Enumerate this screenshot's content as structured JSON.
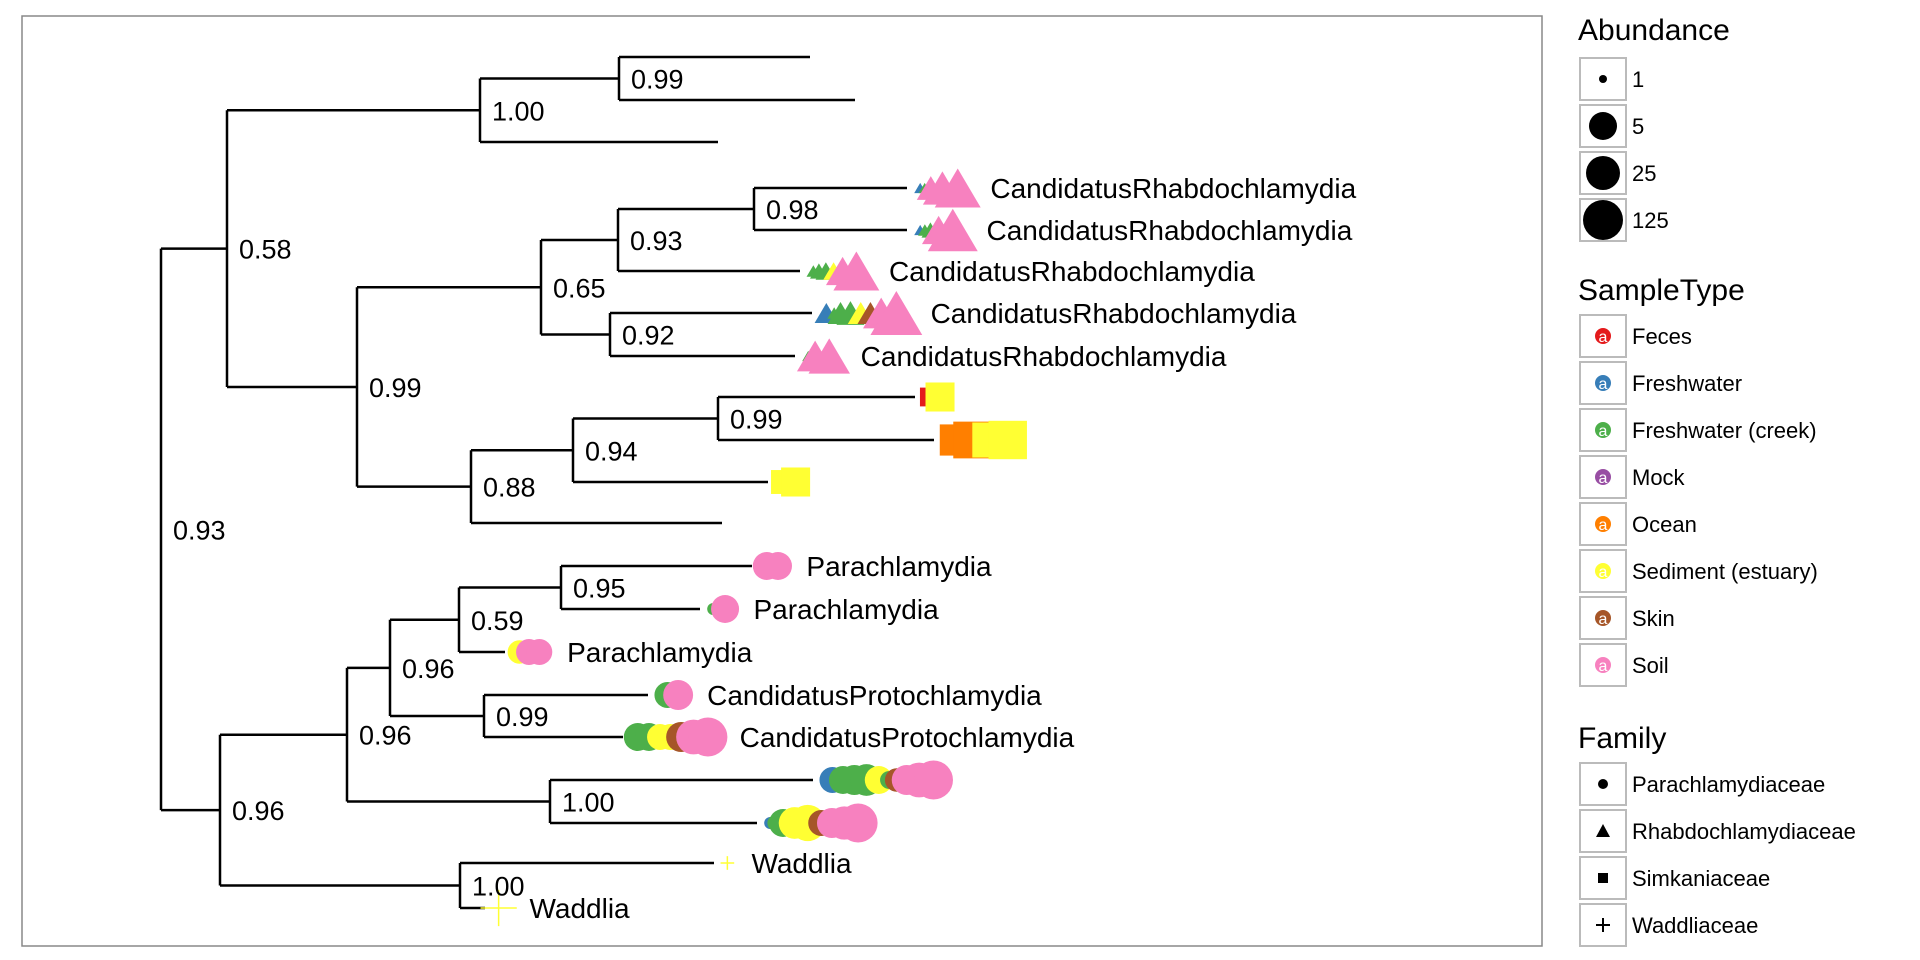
{
  "chart_data": {
    "type": "phylogenetic-tree",
    "colors": {
      "Feces": "#e41a1c",
      "Freshwater": "#377eb8",
      "Freshwater (creek)": "#4daf4a",
      "Mock": "#984ea3",
      "Ocean": "#ff7f00",
      "Sediment (estuary)": "#ffff33",
      "Skin": "#a65628",
      "Soil": "#f781bf"
    },
    "tips": [
      {
        "label": "",
        "family": "",
        "points": []
      },
      {
        "label": "",
        "family": "",
        "points": []
      },
      {
        "label": "",
        "family": "",
        "points": []
      },
      {
        "label": "CandidatusRhabdochlamydia",
        "family": "Rhabdochlamydiaceae",
        "points": [
          [
            "Freshwater",
            1
          ],
          [
            "Freshwater (creek)",
            1
          ],
          [
            "Soil",
            25
          ],
          [
            "Soil",
            60
          ],
          [
            "Soil",
            90
          ]
        ]
      },
      {
        "label": "CandidatusRhabdochlamydia",
        "family": "Rhabdochlamydiaceae",
        "points": [
          [
            "Freshwater",
            1
          ],
          [
            "Freshwater (creek)",
            2
          ],
          [
            "Freshwater (creek)",
            6
          ],
          [
            "Soil",
            40
          ],
          [
            "Soil",
            110
          ]
        ]
      },
      {
        "label": "CandidatusRhabdochlamydia",
        "family": "Rhabdochlamydiaceae",
        "points": [
          [
            "Freshwater (creek)",
            2
          ],
          [
            "Freshwater (creek)",
            6
          ],
          [
            "Freshwater (creek)",
            10
          ],
          [
            "Sediment (estuary)",
            10
          ],
          [
            "Soil",
            40
          ],
          [
            "Soil",
            90
          ]
        ]
      },
      {
        "label": "CandidatusRhabdochlamydia",
        "family": "Rhabdochlamydiaceae",
        "points": [
          [
            "Freshwater",
            15
          ],
          [
            "Freshwater (creek)",
            2
          ],
          [
            "Freshwater (creek)",
            20
          ],
          [
            "Freshwater (creek)",
            25
          ],
          [
            "Sediment (estuary)",
            20
          ],
          [
            "Skin",
            20
          ],
          [
            "Soil",
            50
          ],
          [
            "Soil",
            120
          ]
        ]
      },
      {
        "label": "CandidatusRhabdochlamydia",
        "family": "Rhabdochlamydiaceae",
        "points": [
          [
            "Freshwater (creek)",
            1
          ],
          [
            "Soil",
            50
          ],
          [
            "Soil",
            70
          ]
        ]
      },
      {
        "label": "",
        "family": "Simkaniaceae",
        "points": [
          [
            "Feces",
            15
          ],
          [
            "Sediment (estuary)",
            50
          ]
        ]
      },
      {
        "label": "",
        "family": "Simkaniaceae",
        "points": [
          [
            "Feces",
            2
          ],
          [
            "Ocean",
            60
          ],
          [
            "Ocean",
            90
          ],
          [
            "Sediment (estuary)",
            80
          ],
          [
            "Sediment (estuary)",
            100
          ]
        ]
      },
      {
        "label": "",
        "family": "Simkaniaceae",
        "points": [
          [
            "Sediment (estuary)",
            30
          ],
          [
            "Sediment (estuary)",
            50
          ]
        ]
      },
      {
        "label": "",
        "family": "",
        "points": []
      },
      {
        "label": "Parachlamydia",
        "family": "Parachlamydiaceae",
        "points": [
          [
            "Soil",
            25
          ],
          [
            "Soil",
            25
          ]
        ]
      },
      {
        "label": "Parachlamydia",
        "family": "Parachlamydiaceae",
        "points": [
          [
            "Freshwater (creek)",
            1
          ],
          [
            "Soil",
            2
          ],
          [
            "Soil",
            25
          ]
        ]
      },
      {
        "label": "Parachlamydia",
        "family": "Parachlamydiaceae",
        "points": [
          [
            "Sediment (estuary)",
            15
          ],
          [
            "Soil",
            20
          ],
          [
            "Soil",
            20
          ]
        ]
      },
      {
        "label": "CandidatusProtochlamydia",
        "family": "Parachlamydiaceae",
        "points": [
          [
            "Freshwater",
            1
          ],
          [
            "Freshwater (creek)",
            20
          ],
          [
            "Soil",
            30
          ]
        ]
      },
      {
        "label": "CandidatusProtochlamydia",
        "family": "Parachlamydiaceae",
        "points": [
          [
            "Freshwater (creek)",
            25
          ],
          [
            "Freshwater (creek)",
            25
          ],
          [
            "Sediment (estuary)",
            20
          ],
          [
            "Sediment (estuary)",
            20
          ],
          [
            "Skin",
            30
          ],
          [
            "Soil",
            45
          ],
          [
            "Soil",
            60
          ]
        ]
      },
      {
        "label": "",
        "family": "Parachlamydiaceae",
        "points": [
          [
            "Freshwater",
            1
          ],
          [
            "Freshwater",
            20
          ],
          [
            "Freshwater (creek)",
            25
          ],
          [
            "Freshwater (creek)",
            30
          ],
          [
            "Freshwater (creek)",
            35
          ],
          [
            "Sediment (estuary)",
            25
          ],
          [
            "Freshwater (creek)",
            6
          ],
          [
            "Skin",
            15
          ],
          [
            "Soil",
            30
          ],
          [
            "Soil",
            45
          ],
          [
            "Soil",
            60
          ]
        ]
      },
      {
        "label": "",
        "family": "Parachlamydiaceae",
        "points": [
          [
            "Freshwater",
            1
          ],
          [
            "Freshwater (creek)",
            4
          ],
          [
            "Freshwater (creek)",
            25
          ],
          [
            "Sediment (estuary)",
            35
          ],
          [
            "Sediment (estuary)",
            50
          ],
          [
            "Skin",
            20
          ],
          [
            "Soil",
            30
          ],
          [
            "Soil",
            40
          ],
          [
            "Soil",
            60
          ]
        ]
      },
      {
        "label": "Waddlia",
        "family": "Waddliaceae",
        "points": [
          [
            "Sediment (estuary)",
            2
          ]
        ]
      },
      {
        "label": "Waddlia",
        "family": "Waddliaceae",
        "points": [
          [
            "Sediment (estuary)",
            50
          ]
        ]
      }
    ],
    "support_values": [
      "0.99",
      "1.00",
      "0.58",
      "0.98",
      "0.93",
      "0.65",
      "0.92",
      "0.99",
      "0.99",
      "0.94",
      "0.88",
      "0.93",
      "0.96",
      "0.95",
      "0.59",
      "0.99",
      "0.96",
      "1.00",
      "0.96",
      "1.00"
    ],
    "legends": {
      "abundance": {
        "title": "Abundance",
        "items": [
          "1",
          "5",
          "25",
          "125"
        ],
        "values": [
          1,
          5,
          25,
          125
        ]
      },
      "sample_type": {
        "title": "SampleType",
        "items": [
          "Feces",
          "Freshwater",
          "Freshwater (creek)",
          "Mock",
          "Ocean",
          "Sediment (estuary)",
          "Skin",
          "Soil"
        ],
        "key_glyph": "a"
      },
      "family": {
        "title": "Family",
        "items": [
          "Parachlamydiaceae",
          "Rhabdochlamydiaceae",
          "Simkaniaceae",
          "Waddliaceae"
        ],
        "shapes": [
          "circle",
          "triangle",
          "square",
          "plus"
        ]
      }
    }
  }
}
